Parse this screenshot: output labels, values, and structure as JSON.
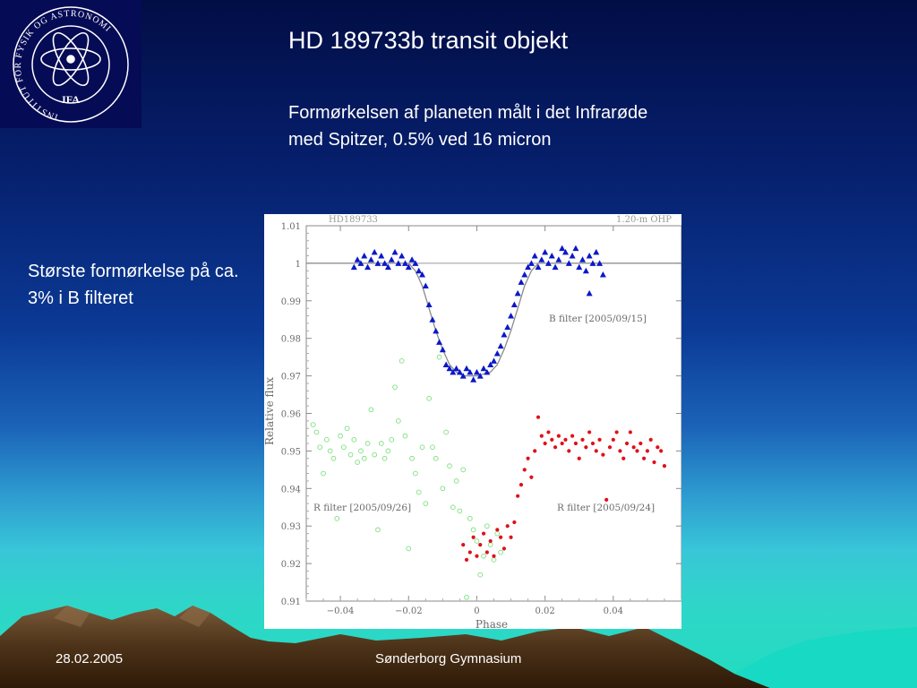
{
  "slide": {
    "title": "HD 189733b transit objekt",
    "subtitle": "Formørkelsen af planeten målt i det Infrarøde med Spitzer, 0.5% ved 16 micron",
    "side_note": "Største formørkelse på ca. 3% i B filteret"
  },
  "logo": {
    "ring_text": "INSTITUT FOR FYSIK OG ASTRONOMI",
    "abbrev": "IFA",
    "icon": "atom-icon"
  },
  "footer": {
    "date": "28.02.2005",
    "school": "Sønderborg Gymnasium"
  },
  "chart_data": {
    "type": "scatter",
    "title_left": "HD189733",
    "title_right": "1.20-m OHP",
    "xlabel": "Phase",
    "ylabel": "Relative flux",
    "xlim": [
      -0.05,
      0.06
    ],
    "ylim": [
      0.91,
      1.01
    ],
    "x_ticks": [
      -0.04,
      -0.02,
      0,
      0.02,
      0.04
    ],
    "x_tick_labels": [
      "−0.04",
      "−0.02",
      "0",
      "0.02",
      "0.04"
    ],
    "y_ticks": [
      0.91,
      0.92,
      0.93,
      0.94,
      0.95,
      0.96,
      0.97,
      0.98,
      0.99,
      1,
      1.01
    ],
    "y_tick_labels": [
      "0.91",
      "0.92",
      "0.93",
      "0.94",
      "0.95",
      "0.96",
      "0.97",
      "0.98",
      "0.99",
      "1",
      "1.01"
    ],
    "reference_line": 1.0,
    "grid": false,
    "series": [
      {
        "name": "B filter [2005/09/15]",
        "marker": "triangle",
        "color": "#0b18c8",
        "points": [
          [
            -0.036,
            0.999
          ],
          [
            -0.035,
            1.001
          ],
          [
            -0.034,
            1.0
          ],
          [
            -0.033,
            1.002
          ],
          [
            -0.032,
            0.999
          ],
          [
            -0.031,
            1.001
          ],
          [
            -0.03,
            1.003
          ],
          [
            -0.029,
            1.0
          ],
          [
            -0.028,
            1.002
          ],
          [
            -0.027,
            1.0
          ],
          [
            -0.026,
            0.999
          ],
          [
            -0.025,
            1.001
          ],
          [
            -0.024,
            1.003
          ],
          [
            -0.023,
            1.0
          ],
          [
            -0.022,
            1.002
          ],
          [
            -0.021,
            1.0
          ],
          [
            -0.02,
            0.999
          ],
          [
            -0.019,
            1.001
          ],
          [
            -0.018,
            1.0
          ],
          [
            -0.017,
            0.998
          ],
          [
            -0.016,
            0.997
          ],
          [
            -0.015,
            0.994
          ],
          [
            -0.014,
            0.989
          ],
          [
            -0.013,
            0.985
          ],
          [
            -0.012,
            0.982
          ],
          [
            -0.011,
            0.979
          ],
          [
            -0.01,
            0.977
          ],
          [
            -0.009,
            0.973
          ],
          [
            -0.008,
            0.972
          ],
          [
            -0.007,
            0.971
          ],
          [
            -0.006,
            0.972
          ],
          [
            -0.005,
            0.971
          ],
          [
            -0.004,
            0.97
          ],
          [
            -0.003,
            0.972
          ],
          [
            -0.002,
            0.971
          ],
          [
            -0.001,
            0.969
          ],
          [
            0.0,
            0.971
          ],
          [
            0.001,
            0.97
          ],
          [
            0.002,
            0.972
          ],
          [
            0.003,
            0.971
          ],
          [
            0.004,
            0.973
          ],
          [
            0.005,
            0.974
          ],
          [
            0.006,
            0.976
          ],
          [
            0.007,
            0.978
          ],
          [
            0.008,
            0.981
          ],
          [
            0.009,
            0.983
          ],
          [
            0.01,
            0.986
          ],
          [
            0.011,
            0.989
          ],
          [
            0.012,
            0.992
          ],
          [
            0.013,
            0.995
          ],
          [
            0.014,
            0.997
          ],
          [
            0.015,
            0.999
          ],
          [
            0.016,
            1.0
          ],
          [
            0.017,
            1.002
          ],
          [
            0.018,
            0.999
          ],
          [
            0.019,
            1.001
          ],
          [
            0.02,
            1.003
          ],
          [
            0.021,
            1.0
          ],
          [
            0.022,
            1.002
          ],
          [
            0.023,
            0.999
          ],
          [
            0.024,
            1.001
          ],
          [
            0.025,
            1.004
          ],
          [
            0.026,
            1.003
          ],
          [
            0.027,
            1.0
          ],
          [
            0.028,
            1.002
          ],
          [
            0.029,
            1.004
          ],
          [
            0.03,
            0.999
          ],
          [
            0.031,
            1.001
          ],
          [
            0.032,
            0.998
          ],
          [
            0.033,
            1.002
          ],
          [
            0.034,
            1.0
          ],
          [
            0.035,
            1.003
          ],
          [
            0.036,
            1.0
          ],
          [
            0.037,
            0.997
          ],
          [
            0.033,
            0.992
          ]
        ]
      },
      {
        "name": "R filter [2005/09/26]",
        "marker": "open-circle",
        "color": "#7de07d",
        "points": [
          [
            -0.048,
            0.957
          ],
          [
            -0.047,
            0.955
          ],
          [
            -0.046,
            0.951
          ],
          [
            -0.045,
            0.944
          ],
          [
            -0.044,
            0.953
          ],
          [
            -0.043,
            0.95
          ],
          [
            -0.042,
            0.948
          ],
          [
            -0.041,
            0.932
          ],
          [
            -0.04,
            0.954
          ],
          [
            -0.039,
            0.951
          ],
          [
            -0.038,
            0.956
          ],
          [
            -0.037,
            0.949
          ],
          [
            -0.036,
            0.953
          ],
          [
            -0.035,
            0.947
          ],
          [
            -0.034,
            0.95
          ],
          [
            -0.033,
            0.948
          ],
          [
            -0.032,
            0.952
          ],
          [
            -0.031,
            0.961
          ],
          [
            -0.03,
            0.949
          ],
          [
            -0.029,
            0.929
          ],
          [
            -0.028,
            0.952
          ],
          [
            -0.027,
            0.948
          ],
          [
            -0.026,
            0.95
          ],
          [
            -0.025,
            0.953
          ],
          [
            -0.024,
            0.967
          ],
          [
            -0.023,
            0.958
          ],
          [
            -0.022,
            0.974
          ],
          [
            -0.021,
            0.954
          ],
          [
            -0.02,
            0.924
          ],
          [
            -0.019,
            0.948
          ],
          [
            -0.018,
            0.944
          ],
          [
            -0.017,
            0.939
          ],
          [
            -0.016,
            0.951
          ],
          [
            -0.015,
            0.936
          ],
          [
            -0.014,
            0.964
          ],
          [
            -0.013,
            0.951
          ],
          [
            -0.012,
            0.948
          ],
          [
            -0.011,
            0.975
          ],
          [
            -0.01,
            0.94
          ],
          [
            -0.009,
            0.955
          ],
          [
            -0.008,
            0.946
          ],
          [
            -0.007,
            0.935
          ],
          [
            -0.006,
            0.942
          ],
          [
            -0.005,
            0.934
          ],
          [
            -0.004,
            0.945
          ],
          [
            -0.003,
            0.911
          ],
          [
            -0.002,
            0.932
          ],
          [
            -0.001,
            0.929
          ],
          [
            0.0,
            0.926
          ],
          [
            0.001,
            0.917
          ],
          [
            0.002,
            0.922
          ],
          [
            0.003,
            0.93
          ],
          [
            0.004,
            0.925
          ],
          [
            0.005,
            0.921
          ],
          [
            0.006,
            0.928
          ],
          [
            0.007,
            0.923
          ]
        ]
      },
      {
        "name": "R filter [2005/09/24]",
        "marker": "filled-circle",
        "color": "#e0101a",
        "points": [
          [
            -0.004,
            0.925
          ],
          [
            -0.003,
            0.921
          ],
          [
            -0.002,
            0.923
          ],
          [
            -0.001,
            0.927
          ],
          [
            0.0,
            0.922
          ],
          [
            0.001,
            0.925
          ],
          [
            0.002,
            0.928
          ],
          [
            0.003,
            0.923
          ],
          [
            0.004,
            0.926
          ],
          [
            0.005,
            0.922
          ],
          [
            0.006,
            0.929
          ],
          [
            0.007,
            0.927
          ],
          [
            0.008,
            0.924
          ],
          [
            0.009,
            0.93
          ],
          [
            0.01,
            0.927
          ],
          [
            0.011,
            0.931
          ],
          [
            0.012,
            0.938
          ],
          [
            0.013,
            0.941
          ],
          [
            0.014,
            0.945
          ],
          [
            0.015,
            0.948
          ],
          [
            0.016,
            0.943
          ],
          [
            0.017,
            0.95
          ],
          [
            0.018,
            0.959
          ],
          [
            0.019,
            0.954
          ],
          [
            0.02,
            0.952
          ],
          [
            0.021,
            0.955
          ],
          [
            0.022,
            0.953
          ],
          [
            0.023,
            0.951
          ],
          [
            0.024,
            0.954
          ],
          [
            0.025,
            0.952
          ],
          [
            0.026,
            0.953
          ],
          [
            0.027,
            0.95
          ],
          [
            0.028,
            0.954
          ],
          [
            0.029,
            0.952
          ],
          [
            0.03,
            0.948
          ],
          [
            0.031,
            0.953
          ],
          [
            0.032,
            0.951
          ],
          [
            0.033,
            0.955
          ],
          [
            0.034,
            0.952
          ],
          [
            0.035,
            0.95
          ],
          [
            0.036,
            0.953
          ],
          [
            0.037,
            0.949
          ],
          [
            0.038,
            0.937
          ],
          [
            0.039,
            0.951
          ],
          [
            0.04,
            0.953
          ],
          [
            0.041,
            0.955
          ],
          [
            0.042,
            0.95
          ],
          [
            0.043,
            0.948
          ],
          [
            0.044,
            0.952
          ],
          [
            0.045,
            0.955
          ],
          [
            0.046,
            0.951
          ],
          [
            0.047,
            0.95
          ],
          [
            0.048,
            0.952
          ],
          [
            0.049,
            0.948
          ],
          [
            0.05,
            0.95
          ],
          [
            0.051,
            0.953
          ],
          [
            0.052,
            0.947
          ],
          [
            0.053,
            0.951
          ],
          [
            0.054,
            0.95
          ],
          [
            0.055,
            0.946
          ]
        ]
      }
    ],
    "model_curve": {
      "name": "transit model",
      "color": "#8a8a8a",
      "x": [
        -0.05,
        -0.02,
        -0.018,
        -0.016,
        -0.014,
        -0.012,
        -0.01,
        -0.008,
        -0.006,
        -0.004,
        0.0,
        0.004,
        0.006,
        0.008,
        0.01,
        0.012,
        0.014,
        0.016,
        0.018,
        0.06
      ],
      "y": [
        1.0,
        1.0,
        0.998,
        0.994,
        0.988,
        0.982,
        0.977,
        0.973,
        0.971,
        0.97,
        0.97,
        0.971,
        0.973,
        0.977,
        0.982,
        0.988,
        0.994,
        0.998,
        1.0,
        1.0
      ]
    }
  }
}
